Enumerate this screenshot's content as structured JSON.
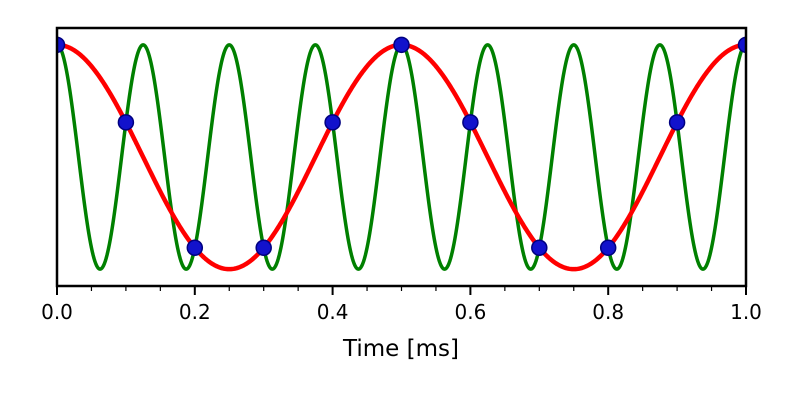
{
  "figure": {
    "background": "#ffffff",
    "axes": {
      "xlabel": "Time [ms]",
      "x_major_ticks": [
        0.0,
        0.2,
        0.4,
        0.6,
        0.8,
        1.0
      ],
      "x_major_tick_labels": [
        "0.0",
        "0.2",
        "0.4",
        "0.6",
        "0.8",
        "1.0"
      ],
      "x_minor_ticks": [
        0.05,
        0.1,
        0.15,
        0.25,
        0.3,
        0.35,
        0.45,
        0.5,
        0.55,
        0.65,
        0.7,
        0.75,
        0.85,
        0.9,
        0.95
      ],
      "spine_color": "#000000",
      "y_tick_labels": []
    }
  },
  "chart_data": {
    "type": "line",
    "title": "",
    "xlabel": "Time [ms]",
    "ylabel": "",
    "xlim": [
      0.0,
      1.0
    ],
    "ylim": [
      -1.15,
      1.15
    ],
    "grid": false,
    "legend_position": "none",
    "series": [
      {
        "name": "original-signal-cosine",
        "plot": "line",
        "curve": "cosine",
        "frequency_cycles_per_ms": 8,
        "amplitude": 1.0,
        "phase": 0.0,
        "color": "#008000",
        "linewidth": 3.5
      },
      {
        "name": "aliased-signal-cosine",
        "plot": "line",
        "curve": "cosine",
        "frequency_cycles_per_ms": 2,
        "amplitude": 1.0,
        "phase": 0.0,
        "color": "#ff0000",
        "linewidth": 4.5
      },
      {
        "name": "sample-points",
        "plot": "scatter",
        "color": "#1212cc",
        "edge_color": "#000080",
        "marker_size": 7.5,
        "x": [
          0.0,
          0.1,
          0.2,
          0.3,
          0.4,
          0.5,
          0.6,
          0.7,
          0.8,
          0.9,
          1.0
        ],
        "y": [
          1.0,
          0.309,
          -0.809,
          -0.809,
          0.309,
          1.0,
          0.309,
          -0.809,
          -0.809,
          0.309,
          1.0
        ]
      }
    ]
  }
}
